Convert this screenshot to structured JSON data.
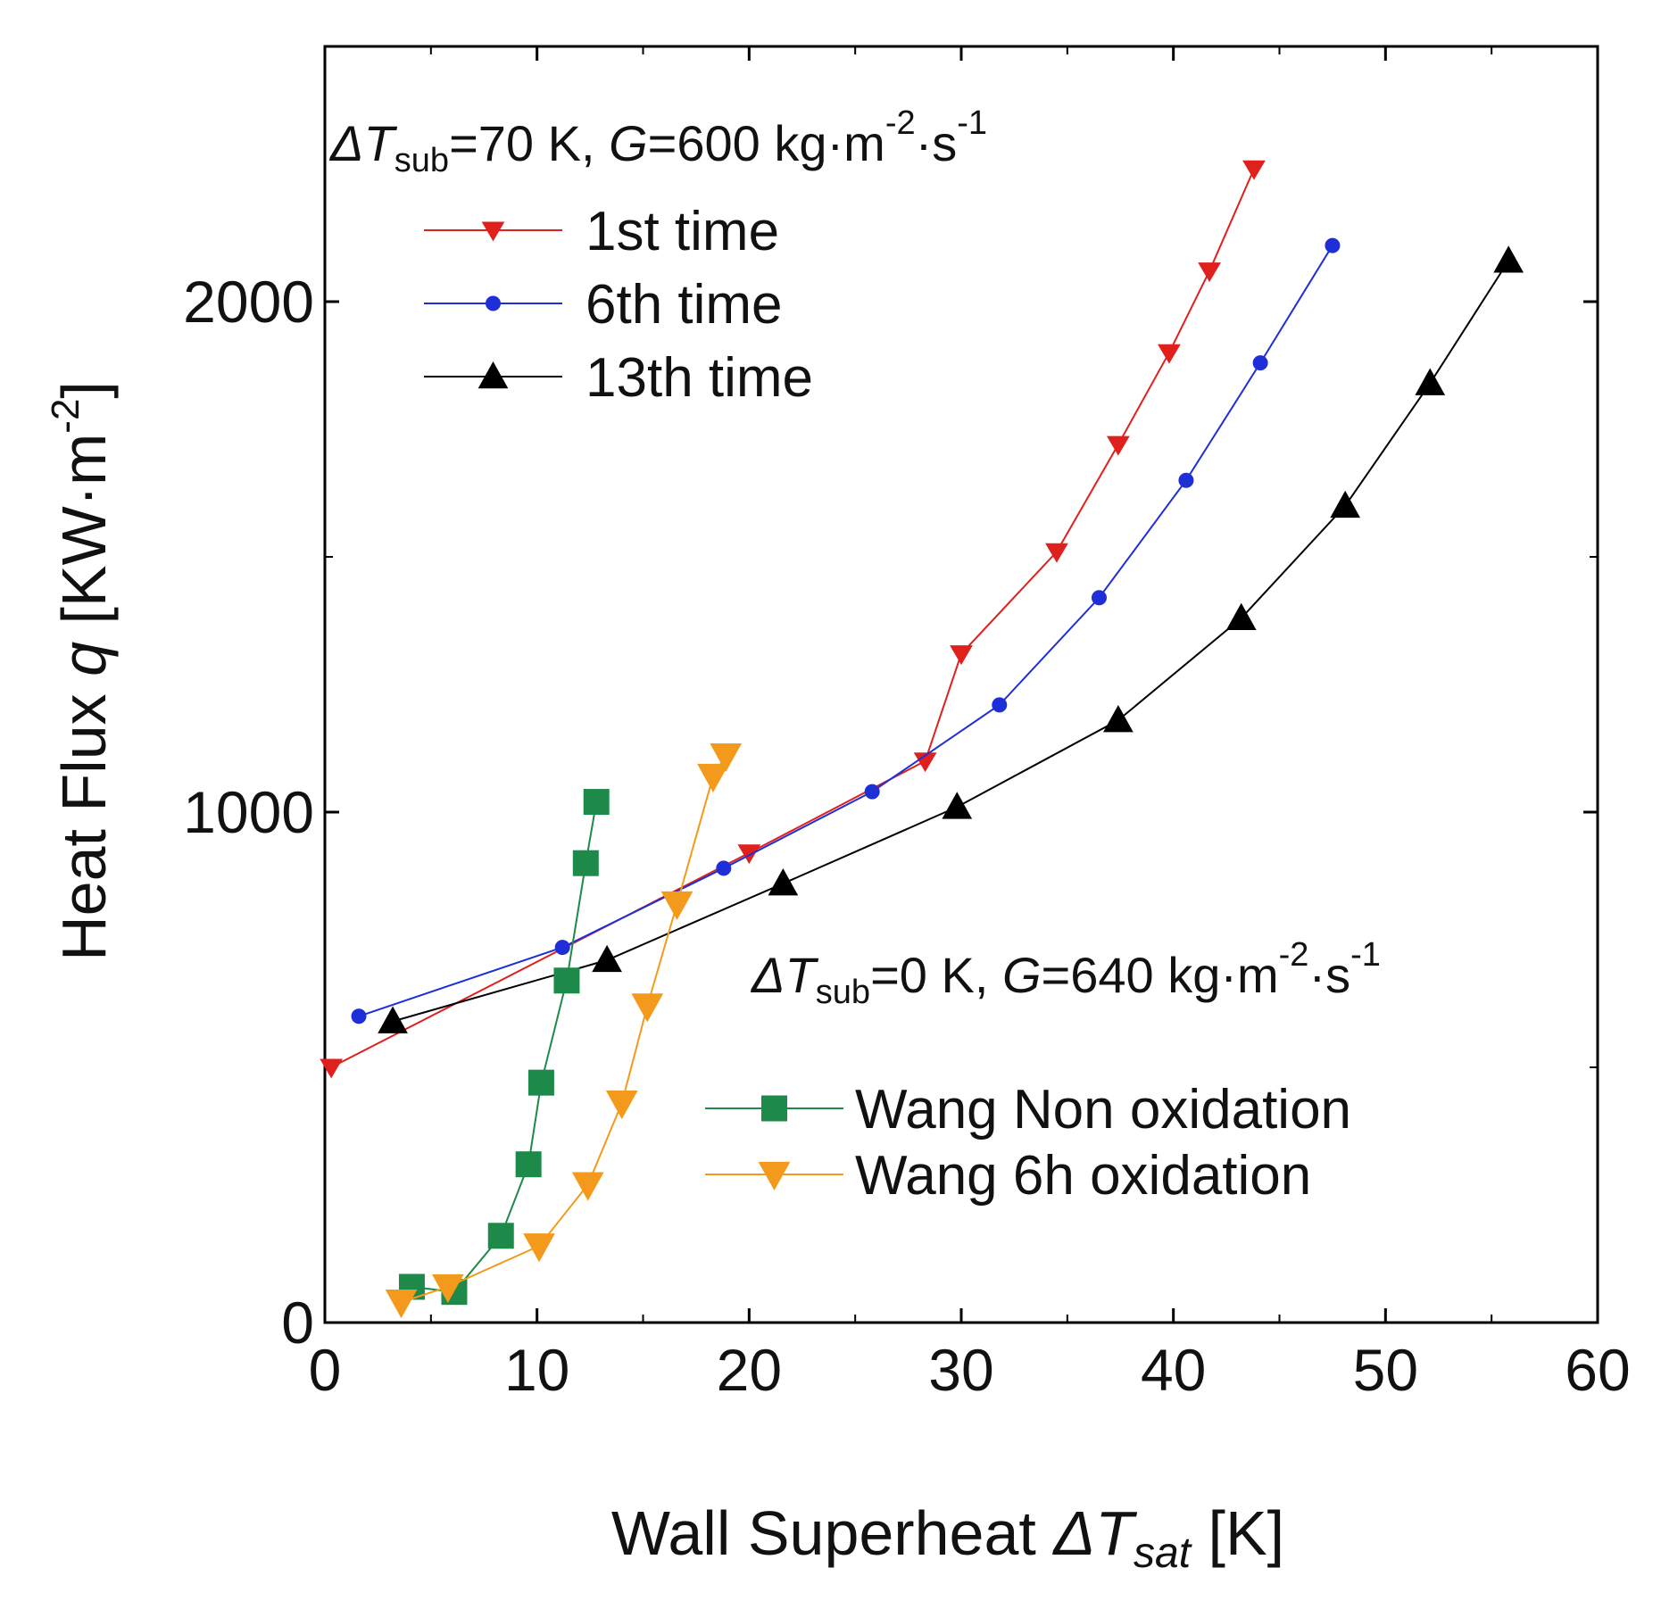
{
  "chart_data": {
    "type": "line",
    "title": "",
    "xlabel": {
      "prefix": "Wall Superheat ",
      "delta": "Δ",
      "var": "T",
      "sub": "sat",
      "unit": " [K]"
    },
    "ylabel": {
      "prefix": "Heat Flux ",
      "var": "q",
      "unit": " [KW·m",
      "exp": "-2",
      "close": "]"
    },
    "xlim": [
      0,
      60
    ],
    "ylim": [
      0,
      2500
    ],
    "x_ticks": [
      0,
      10,
      20,
      30,
      40,
      50,
      60
    ],
    "x_tick_labels": [
      "0",
      "10",
      "20",
      "30",
      "40",
      "50",
      "60"
    ],
    "y_ticks": [
      0,
      1000,
      2000
    ],
    "y_tick_labels": [
      "0",
      "1000",
      "2000"
    ],
    "grid": false,
    "annotations": [
      {
        "id": "cond1",
        "delta": "Δ",
        "T": "T",
        "sub": "sub",
        "mid": "=70 K, ",
        "G": "G",
        "rest": "=600 kg·m",
        "e1": "-2",
        "dot": "·s",
        "e2": "-1"
      },
      {
        "id": "cond2",
        "delta": "Δ",
        "T": "T",
        "sub": "sub",
        "mid": "=0 K, ",
        "G": "G",
        "rest": "=640 kg·m",
        "e1": "-2",
        "dot": "·s",
        "e2": "-1"
      }
    ],
    "series": [
      {
        "name": "1st time",
        "color": "#e0201c",
        "marker": "tri-down-small",
        "x": [
          0.3,
          20.0,
          28.3,
          30.0,
          34.5,
          37.4,
          39.8,
          41.7,
          43.8
        ],
        "y": [
          500,
          920,
          1100,
          1310,
          1510,
          1720,
          1900,
          2060,
          2260
        ]
      },
      {
        "name": "6th time",
        "color": "#1f2fd8",
        "marker": "circle-small",
        "x": [
          1.6,
          11.2,
          18.8,
          25.8,
          31.8,
          36.5,
          40.6,
          44.1,
          47.5
        ],
        "y": [
          600,
          735,
          890,
          1040,
          1210,
          1420,
          1650,
          1880,
          2110
        ]
      },
      {
        "name": "13th time",
        "color": "#000000",
        "marker": "tri-up",
        "x": [
          3.2,
          13.3,
          21.6,
          29.8,
          37.4,
          43.2,
          48.1,
          52.1,
          55.8
        ],
        "y": [
          590,
          710,
          860,
          1010,
          1180,
          1380,
          1600,
          1840,
          2080
        ]
      },
      {
        "name": "Wang Non oxidation",
        "color": "#1e8a4a",
        "marker": "square",
        "x": [
          4.1,
          6.1,
          8.3,
          9.6,
          10.2,
          11.4,
          12.3,
          12.8
        ],
        "y": [
          70,
          60,
          170,
          310,
          470,
          670,
          900,
          1020
        ]
      },
      {
        "name": "Wang 6h oxidation",
        "color": "#f39a1c",
        "marker": "tri-down",
        "x": [
          3.6,
          5.8,
          10.1,
          12.4,
          14.0,
          15.2,
          16.6,
          18.3,
          18.9
        ],
        "y": [
          40,
          70,
          150,
          270,
          430,
          620,
          820,
          1070,
          1110
        ]
      }
    ],
    "legends": [
      {
        "location": "upper-left",
        "series": [
          "1st time",
          "6th time",
          "13th time"
        ]
      },
      {
        "location": "lower-right",
        "series": [
          "Wang Non oxidation",
          "Wang 6h oxidation"
        ]
      }
    ]
  }
}
